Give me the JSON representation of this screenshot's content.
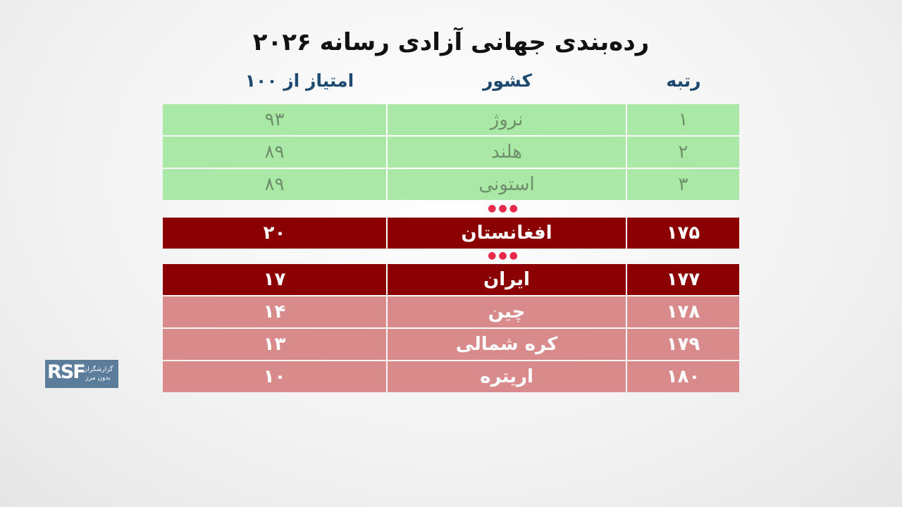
{
  "title": "رده‌بندی جهانی آزادی رسانه ۲۰۲۶",
  "table": {
    "header": [
      "رتبه",
      "کشور",
      "امتیاز از ۱۰۰"
    ],
    "rows": [
      [
        "۱",
        "نروژ",
        "۹۳"
      ],
      [
        "۲",
        "هلند",
        "۸۹"
      ],
      [
        "۳",
        "استونی",
        "۸۹"
      ],
      [
        "۱۷۵",
        "افغانستان",
        "۲۰"
      ],
      [
        "۱۷۷",
        "ایران",
        "۱۷"
      ],
      [
        "۱۷۸",
        "چین",
        "۱۴"
      ],
      [
        "۱۷۹",
        "کره شمالی",
        "۱۳"
      ],
      [
        "۱۸۰",
        "اریتره",
        "۱۰"
      ]
    ]
  },
  "logo": {
    "mark": "RSF",
    "line1": "گزارشگران",
    "line2": "بدون مرز"
  }
}
